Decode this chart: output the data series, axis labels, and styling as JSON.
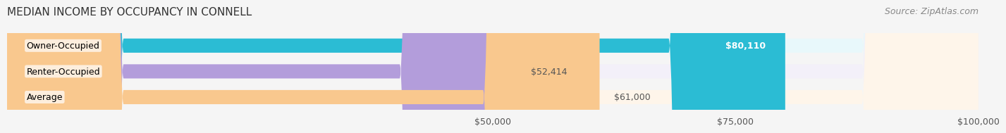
{
  "title": "MEDIAN INCOME BY OCCUPANCY IN CONNELL",
  "source": "Source: ZipAtlas.com",
  "categories": [
    "Owner-Occupied",
    "Renter-Occupied",
    "Average"
  ],
  "values": [
    80110,
    52414,
    61000
  ],
  "labels": [
    "$80,110",
    "$52,414",
    "$61,000"
  ],
  "bar_colors": [
    "#2bbcd4",
    "#b39ddb",
    "#f9c88e"
  ],
  "bar_bg_colors": [
    "#e8f8fb",
    "#f3f0f9",
    "#fef5ea"
  ],
  "label_inside": [
    true,
    false,
    false
  ],
  "xlim": [
    0,
    100000
  ],
  "xticks": [
    50000,
    75000,
    100000
  ],
  "xtick_labels": [
    "$50,000",
    "$75,000",
    "$100,000"
  ],
  "bar_height": 0.55,
  "title_fontsize": 11,
  "source_fontsize": 9,
  "label_fontsize": 9,
  "tick_fontsize": 9,
  "cat_fontsize": 9,
  "background_color": "#f5f5f5"
}
